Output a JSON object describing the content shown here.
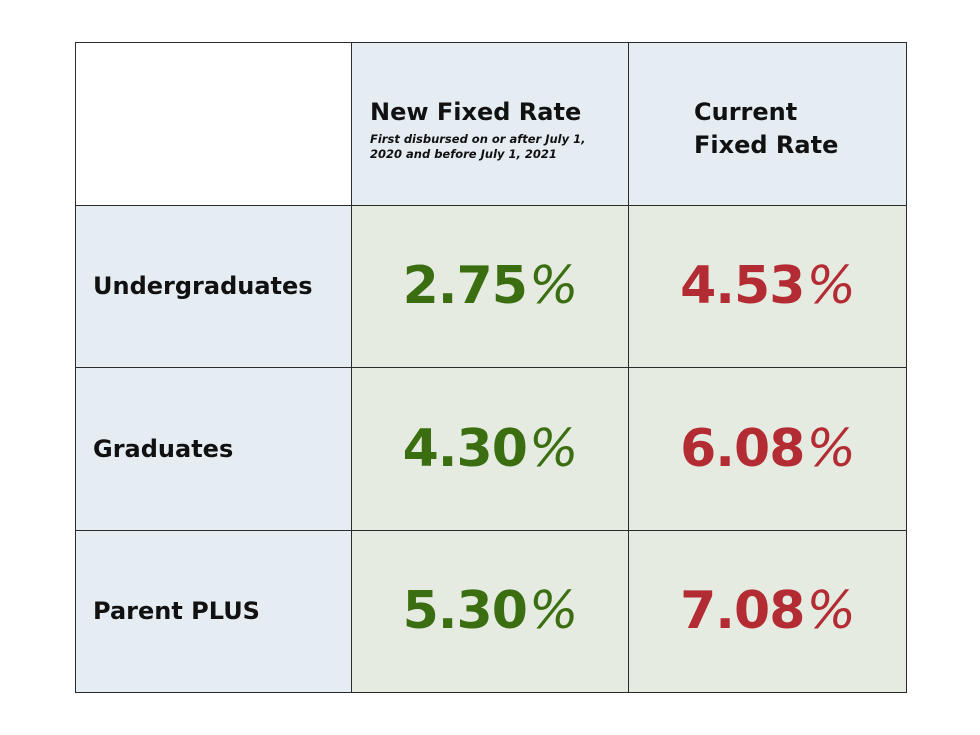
{
  "colors": {
    "new_rate": "#3b6e10",
    "current_rate": "#b32b33",
    "header_bg": "#e5edf3",
    "value_bg": "#e6ebe2",
    "border": "#2b2b2b"
  },
  "header": {
    "blank": "",
    "new_rate": {
      "title": "New Fixed Rate",
      "subtitle": "First disbursed on or after July 1, 2020 and before July 1, 2021"
    },
    "current_rate": {
      "title_line1": "Current",
      "title_line2": "Fixed Rate"
    }
  },
  "rows": [
    {
      "label": "Undergraduates",
      "new_rate": "2.75",
      "current_rate": "4.53",
      "unit": "%"
    },
    {
      "label": "Graduates",
      "new_rate": "4.30",
      "current_rate": "6.08",
      "unit": "%"
    },
    {
      "label": "Parent PLUS",
      "new_rate": "5.30",
      "current_rate": "7.08",
      "unit": "%"
    }
  ]
}
